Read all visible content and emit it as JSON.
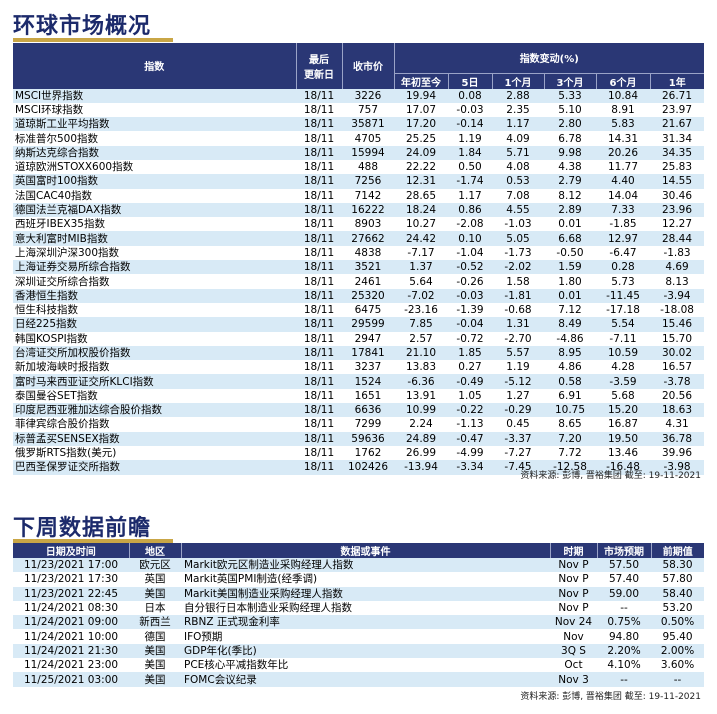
{
  "section1": {
    "title": "环球市场概况",
    "headers": {
      "index": "指数",
      "last_update": "最后",
      "last_update2": "更新日",
      "close": "收市价",
      "change_group": "指数变动(%)",
      "ytd": "年初至今",
      "d5": "5日",
      "m1": "1个月",
      "m3": "3个月",
      "m6": "6个月",
      "y1": "1年"
    },
    "rows": [
      [
        "MSCI世界指数",
        "18/11",
        "3226",
        "19.94",
        "0.08",
        "2.88",
        "5.33",
        "10.84",
        "26.71"
      ],
      [
        "MSCI环球指数",
        "18/11",
        "757",
        "17.07",
        "-0.03",
        "2.35",
        "5.10",
        "8.91",
        "23.97"
      ],
      [
        "道琼斯工业平均指数",
        "18/11",
        "35871",
        "17.20",
        "-0.14",
        "1.17",
        "2.80",
        "5.83",
        "21.67"
      ],
      [
        "标准普尔500指数",
        "18/11",
        "4705",
        "25.25",
        "1.19",
        "4.09",
        "6.78",
        "14.31",
        "31.34"
      ],
      [
        "纳斯达克综合指数",
        "18/11",
        "15994",
        "24.09",
        "1.84",
        "5.71",
        "9.98",
        "20.26",
        "34.35"
      ],
      [
        "道琼欧洲STOXX600指数",
        "18/11",
        "488",
        "22.22",
        "0.50",
        "4.08",
        "4.38",
        "11.77",
        "25.83"
      ],
      [
        "英国富时100指数",
        "18/11",
        "7256",
        "12.31",
        "-1.74",
        "0.53",
        "2.79",
        "4.40",
        "14.55"
      ],
      [
        "法国CAC40指数",
        "18/11",
        "7142",
        "28.65",
        "1.17",
        "7.08",
        "8.12",
        "14.04",
        "30.46"
      ],
      [
        "德国法兰克福DAX指数",
        "18/11",
        "16222",
        "18.24",
        "0.86",
        "4.55",
        "2.89",
        "7.33",
        "23.96"
      ],
      [
        "西班牙IBEX35指数",
        "18/11",
        "8903",
        "10.27",
        "-2.08",
        "-1.03",
        "0.01",
        "-1.85",
        "12.27"
      ],
      [
        "意大利富时MIB指数",
        "18/11",
        "27662",
        "24.42",
        "0.10",
        "5.05",
        "6.68",
        "12.97",
        "28.44"
      ],
      [
        "上海深圳沪深300指数",
        "18/11",
        "4838",
        "-7.17",
        "-1.04",
        "-1.73",
        "-0.50",
        "-6.47",
        "-1.83"
      ],
      [
        "上海证券交易所综合指数",
        "18/11",
        "3521",
        "1.37",
        "-0.52",
        "-2.02",
        "1.59",
        "0.28",
        "4.69"
      ],
      [
        "深圳证交所综合指数",
        "18/11",
        "2461",
        "5.64",
        "-0.26",
        "1.58",
        "1.80",
        "5.73",
        "8.13"
      ],
      [
        "香港恒生指数",
        "18/11",
        "25320",
        "-7.02",
        "-0.03",
        "-1.81",
        "0.01",
        "-11.45",
        "-3.94"
      ],
      [
        "恒生科技指数",
        "18/11",
        "6475",
        "-23.16",
        "-1.39",
        "-0.68",
        "7.12",
        "-17.18",
        "-18.08"
      ],
      [
        "日经225指数",
        "18/11",
        "29599",
        "7.85",
        "-0.04",
        "1.31",
        "8.49",
        "5.54",
        "15.46"
      ],
      [
        "韩国KOSPI指数",
        "18/11",
        "2947",
        "2.57",
        "-0.72",
        "-2.70",
        "-4.86",
        "-7.11",
        "15.70"
      ],
      [
        "台湾证交所加权股价指数",
        "18/11",
        "17841",
        "21.10",
        "1.85",
        "5.57",
        "8.95",
        "10.59",
        "30.02"
      ],
      [
        "新加坡海峡时报指数",
        "18/11",
        "3237",
        "13.83",
        "0.27",
        "1.19",
        "4.86",
        "4.28",
        "16.57"
      ],
      [
        "富时马来西亚证交所KLCI指数",
        "18/11",
        "1524",
        "-6.36",
        "-0.49",
        "-5.12",
        "0.58",
        "-3.59",
        "-3.78"
      ],
      [
        "泰国曼谷SET指数",
        "18/11",
        "1651",
        "13.91",
        "1.05",
        "1.27",
        "6.91",
        "5.68",
        "20.56"
      ],
      [
        "印度尼西亚雅加达综合股价指数",
        "18/11",
        "6636",
        "10.99",
        "-0.22",
        "-0.29",
        "10.75",
        "15.20",
        "18.63"
      ],
      [
        "菲律宾综合股价指数",
        "18/11",
        "7299",
        "2.24",
        "-1.13",
        "0.45",
        "8.65",
        "16.87",
        "4.31"
      ],
      [
        "标普孟买SENSEX指数",
        "18/11",
        "59636",
        "24.89",
        "-0.47",
        "-3.37",
        "7.20",
        "19.50",
        "36.78"
      ],
      [
        "俄罗斯RTS指数(美元)",
        "18/11",
        "1762",
        "26.99",
        "-4.99",
        "-7.27",
        "7.72",
        "13.46",
        "39.96"
      ],
      [
        "巴西圣保罗证交所指数",
        "18/11",
        "102426",
        "-13.94",
        "-3.34",
        "-7.45",
        "-12.58",
        "-16.48",
        "-3.98"
      ]
    ],
    "source": "资料来源: 彭博, 晋裕集团 截至: 19-11-2021"
  },
  "section2": {
    "title": "下周数据前瞻",
    "headers": {
      "datetime": "日期及时间",
      "region": "地区",
      "event": "数据或事件",
      "period": "时期",
      "forecast": "市场预期",
      "previous": "前期值"
    },
    "rows": [
      [
        "11/23/2021 17:00",
        "欧元区",
        "Markit欧元区制造业采购经理人指数",
        "Nov P",
        "57.50",
        "58.30"
      ],
      [
        "11/23/2021 17:30",
        "英国",
        "Markit英国PMI制造(经季调)",
        "Nov P",
        "57.40",
        "57.80"
      ],
      [
        "11/23/2021 22:45",
        "美国",
        "Markit美国制造业采购经理人指数",
        "Nov P",
        "59.00",
        "58.40"
      ],
      [
        "11/24/2021 08:30",
        "日本",
        "自分银行日本制造业采购经理人指数",
        "Nov P",
        "--",
        "53.20"
      ],
      [
        "11/24/2021 09:00",
        "新西兰",
        "RBNZ 正式现金利率",
        "Nov 24",
        "0.75%",
        "0.50%"
      ],
      [
        "11/24/2021 10:00",
        "德国",
        "IFO预期",
        "Nov",
        "94.80",
        "95.40"
      ],
      [
        "11/24/2021 21:30",
        "美国",
        "GDP年化(季比)",
        "3Q S",
        "2.20%",
        "2.00%"
      ],
      [
        "11/24/2021 23:00",
        "美国",
        "PCE核心平减指数年比",
        "Oct",
        "4.10%",
        "3.60%"
      ],
      [
        "11/25/2021 03:00",
        "美国",
        "FOMC会议纪录",
        "Nov 3",
        "--",
        "--"
      ]
    ],
    "source": "资料来源: 彭博, 晋裕集团 截至: 19-11-2021"
  },
  "colors": {
    "header_bg": "#2a3775",
    "row_alt": "#d8eaf6",
    "title": "#1c2a6b",
    "accent": "#c9a646"
  }
}
